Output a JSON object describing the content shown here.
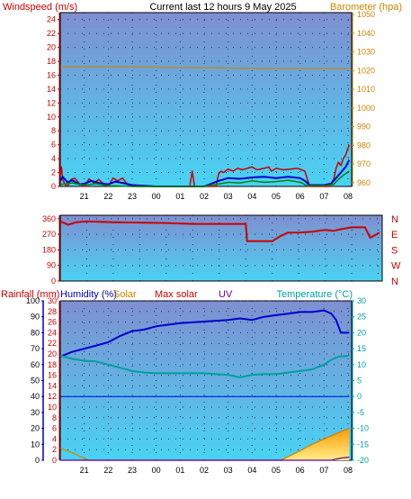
{
  "colors": {
    "plot_top": "#7f8fd0",
    "plot_bottom": "#49d3f4",
    "grid_dot": "#1a2a5a",
    "red": "#cc0000",
    "blue": "#0000cc",
    "green": "#008800",
    "orange": "#cc8400",
    "teal": "#009f9f",
    "purple": "#660099",
    "frame": "#000000"
  },
  "x_ticks": [
    "21",
    "22",
    "23",
    "00",
    "01",
    "02",
    "03",
    "04",
    "05",
    "06",
    "07",
    "08"
  ],
  "chart_data": [
    {
      "type": "line",
      "title": "Current last 12 hours 9 May 2025",
      "left_axis_label": "Windspeed (m/s)",
      "right_axis_label": "Barometer (hpa)",
      "left_ticks": [
        0,
        2,
        4,
        6,
        8,
        10,
        12,
        14,
        16,
        18,
        20,
        22,
        24
      ],
      "right_ticks": [
        960,
        970,
        980,
        990,
        1000,
        1010,
        1020,
        1030,
        1040,
        1050
      ],
      "ylim_left": [
        0,
        25
      ],
      "ylim_right": [
        958,
        1051
      ],
      "series": [
        {
          "role": "gust",
          "color": "red",
          "axis": "left",
          "x": [
            0,
            0.05,
            0.1,
            0.2,
            0.3,
            0.45,
            0.6,
            0.8,
            1.0,
            1.2,
            1.4,
            1.6,
            1.8,
            2.0,
            2.2,
            2.4,
            2.6,
            2.8,
            3.0,
            3.5,
            4.0,
            4.5,
            5.0,
            5.4,
            5.5,
            5.6,
            6.0,
            6.5,
            6.6,
            6.7,
            6.8,
            7.0,
            7.2,
            7.4,
            7.6,
            7.8,
            8.0,
            8.2,
            8.5,
            8.7,
            8.8,
            9.0,
            9.3,
            9.6,
            9.9,
            10.2,
            10.4,
            10.6,
            10.8,
            11.0,
            11.2,
            11.4,
            11.5,
            11.6,
            11.7,
            11.8,
            11.9,
            12.0,
            12.05
          ],
          "y": [
            1.6,
            2.8,
            1.0,
            0.3,
            0,
            1.0,
            1.2,
            0.4,
            0,
            1.1,
            0.5,
            1.0,
            0.4,
            0,
            1.2,
            0.8,
            1.2,
            0.3,
            0,
            0,
            0,
            0,
            0,
            0,
            2.2,
            0,
            0,
            0,
            1.8,
            2.2,
            2.0,
            2.5,
            2.2,
            2.6,
            2.4,
            2.6,
            2.8,
            2.4,
            2.6,
            2.8,
            2.2,
            2.6,
            2.4,
            2.5,
            2.6,
            2.2,
            0,
            0,
            0,
            0,
            0,
            1.0,
            2.6,
            3.5,
            3.0,
            4.0,
            4.5,
            5.5,
            6.0
          ]
        },
        {
          "role": "average",
          "color": "blue",
          "axis": "left",
          "x": [
            0,
            0.1,
            0.3,
            0.5,
            0.8,
            1.0,
            1.3,
            1.6,
            2.0,
            2.3,
            2.6,
            3.0,
            4.0,
            5.0,
            6.0,
            6.6,
            6.8,
            7.0,
            7.5,
            8.0,
            8.5,
            9.0,
            9.5,
            10.0,
            10.2,
            10.4,
            11.0,
            11.3,
            11.5,
            11.7,
            11.9,
            12.05
          ],
          "y": [
            0.8,
            1.4,
            0.6,
            0.9,
            0.3,
            0.4,
            0.8,
            0.5,
            0.3,
            0.7,
            0.5,
            0.2,
            0,
            0,
            0,
            0.8,
            1.0,
            1.2,
            1.1,
            1.3,
            1.4,
            1.2,
            1.4,
            1.2,
            0.8,
            0.2,
            0.2,
            0.4,
            1.2,
            2.0,
            2.8,
            3.8
          ]
        },
        {
          "role": "calm",
          "color": "green",
          "axis": "left",
          "x": [
            0,
            0.5,
            1.0,
            1.5,
            2.0,
            3.0,
            6.0,
            6.7,
            7.0,
            7.5,
            8.0,
            8.5,
            9.0,
            9.5,
            10.0,
            10.3,
            11.0,
            11.4,
            11.6,
            11.8,
            12.05
          ],
          "y": [
            0.3,
            0.5,
            0.2,
            0.4,
            0.1,
            0,
            0,
            0.4,
            0.6,
            0.5,
            0.8,
            0.6,
            0.7,
            0.9,
            0.6,
            0.1,
            0.1,
            0.3,
            1.0,
            1.6,
            2.2
          ]
        },
        {
          "role": "pressure",
          "color": "orange",
          "axis": "right",
          "x": [
            0,
            3,
            6,
            9,
            12.05
          ],
          "y": [
            1022,
            1022,
            1021.5,
            1021,
            1021
          ]
        }
      ]
    },
    {
      "type": "line",
      "left_ticks": [
        0,
        90,
        180,
        270,
        360
      ],
      "right_ticks": [
        "N",
        "W",
        "S",
        "E",
        "N"
      ],
      "ylim": [
        0,
        380
      ],
      "series": [
        {
          "role": "wind-direction",
          "color": "red",
          "x": [
            0,
            0.3,
            0.6,
            1.0,
            2.0,
            3.0,
            4.0,
            5.0,
            6.0,
            7.0,
            7.05,
            7.5,
            8.0,
            8.3,
            8.6,
            9.0,
            9.5,
            10.0,
            10.3,
            10.6,
            11.0,
            11.5,
            11.7,
            12.05
          ],
          "y": [
            345,
            325,
            340,
            345,
            340,
            338,
            335,
            330,
            330,
            330,
            230,
            230,
            230,
            260,
            280,
            280,
            285,
            295,
            290,
            300,
            310,
            310,
            250,
            280
          ]
        }
      ]
    },
    {
      "type": "line",
      "labels": {
        "rainfall": "Rainfall (mm)",
        "humidity": "Humidity (%)",
        "solar": "Solar",
        "max_solar": "Max solar",
        "uv": "UV",
        "temperature": "Temperature (°C)"
      },
      "left_outer_ticks": [
        0,
        10,
        20,
        30,
        40,
        50,
        60,
        70,
        80,
        90,
        100
      ],
      "left_inner_ticks": [
        0,
        2,
        4,
        6,
        8,
        10,
        12,
        14,
        16,
        18,
        20,
        22,
        24,
        26,
        28,
        30
      ],
      "right_ticks": [
        -20,
        -15,
        -10,
        -5,
        0,
        5,
        10,
        15,
        20,
        25,
        30
      ],
      "ylim_humidity": [
        0,
        100
      ],
      "ylim_temperature": [
        -20,
        30
      ],
      "series": [
        {
          "role": "humidity",
          "color": "blue",
          "x": [
            0,
            0.5,
            1.0,
            1.5,
            2.0,
            2.5,
            3.0,
            3.5,
            4.0,
            5.0,
            6.0,
            7.0,
            7.5,
            8.0,
            8.5,
            9.0,
            9.5,
            10.0,
            10.5,
            11.0,
            11.3,
            11.5,
            11.7,
            12.05
          ],
          "y": [
            65,
            68,
            70,
            72,
            74,
            78,
            81,
            82,
            84,
            86,
            87,
            88,
            89,
            88,
            90,
            91,
            92,
            93,
            93,
            94,
            92,
            88,
            80,
            80
          ]
        },
        {
          "role": "temperature",
          "color": "teal",
          "x": [
            0,
            0.5,
            1.0,
            1.5,
            2.0,
            2.5,
            3.0,
            3.5,
            4.0,
            5.0,
            6.0,
            6.5,
            7.0,
            7.5,
            8.0,
            8.5,
            9.0,
            9.5,
            10.0,
            10.5,
            11.0,
            11.3,
            11.6,
            12.05
          ],
          "y": [
            12.8,
            11.8,
            11.2,
            11.0,
            10.0,
            9.0,
            8.0,
            7.5,
            7.3,
            7.3,
            7.3,
            7.0,
            6.8,
            6.0,
            6.8,
            7.0,
            7.0,
            7.5,
            8.0,
            8.5,
            10.0,
            11.5,
            12.5,
            12.8
          ]
        },
        {
          "role": "dew-line",
          "color": "blue",
          "x": [
            0,
            12.05
          ],
          "y": [
            0,
            0
          ]
        },
        {
          "role": "solar",
          "color": "orange",
          "x": [
            0,
            0.5,
            1.0,
            1.2,
            9.2,
            10.0,
            10.5,
            11.0,
            11.5,
            12.05
          ],
          "y": [
            2.3,
            1.4,
            0.4,
            0,
            0,
            1.8,
            3.0,
            4.0,
            5.0,
            6.0
          ]
        },
        {
          "role": "uv",
          "color": "purple",
          "x": [
            0,
            11.3,
            11.5,
            11.7,
            12.05
          ],
          "y": [
            0,
            0,
            0.2,
            0.4,
            0.6
          ]
        }
      ]
    }
  ]
}
